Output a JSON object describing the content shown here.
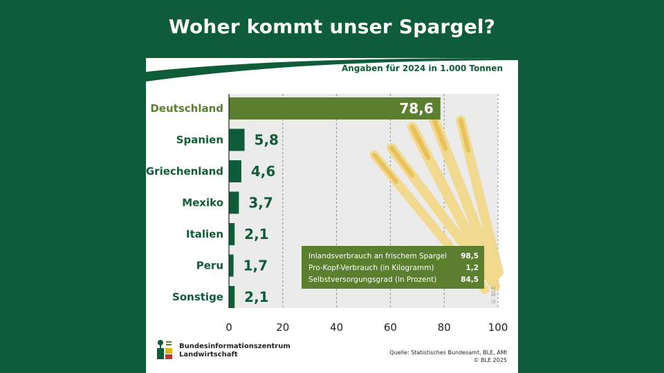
{
  "title": "Woher kommt unser Spargel?",
  "unit_note": "Angaben für 2024 in 1.000 Tonnen",
  "chart_data": {
    "type": "bar",
    "orientation": "horizontal",
    "categories": [
      "Deutschland",
      "Spanien",
      "Griechenland",
      "Mexiko",
      "Italien",
      "Peru",
      "Sonstige"
    ],
    "values": [
      78.6,
      5.8,
      4.6,
      3.7,
      2.1,
      1.7,
      2.1
    ],
    "value_labels": [
      "78,6",
      "5,8",
      "4,6",
      "3,7",
      "2,1",
      "1,7",
      "2,1"
    ],
    "highlight_category": "Deutschland",
    "xlim": [
      0,
      100
    ],
    "xticks": [
      "0",
      "20",
      "40",
      "60",
      "80",
      "100"
    ],
    "xtick_values": [
      0,
      20,
      40,
      60,
      80,
      100
    ],
    "grid": "vertical dashed",
    "colors": {
      "bar": "#0f5c3a",
      "highlight": "#5b7f2e",
      "plot_bg": "#ebebeb"
    }
  },
  "info_box": [
    {
      "label": "Inlandsverbrauch an frischem Spargel",
      "value": "98,5"
    },
    {
      "label": "Pro-Kopf-Verbrauch (in Kilogramm)",
      "value": "1,2"
    },
    {
      "label": "Selbstversorgungsgrad (in Prozent)",
      "value": "84,5"
    }
  ],
  "copyright_vertical": "© BLE",
  "organization": {
    "line1": "Bundesinformationszentrum",
    "line2": "Landwirtschaft"
  },
  "source": {
    "line1": "Quelle: Statistisches Bundesamt, BLE, AMI",
    "line2": "© BLE 2025"
  }
}
